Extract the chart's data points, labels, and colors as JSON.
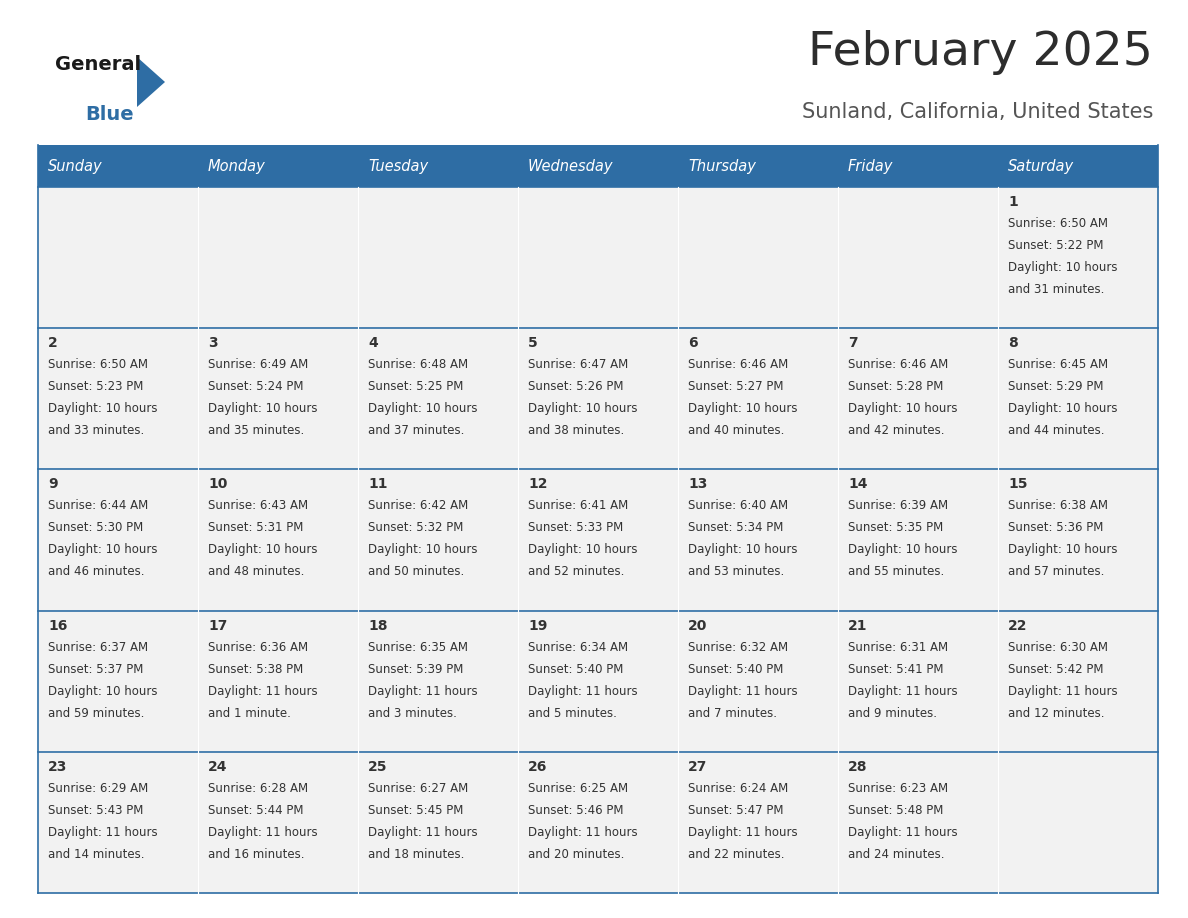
{
  "title": "February 2025",
  "subtitle": "Sunland, California, United States",
  "header_bg": "#2e6da4",
  "header_text_color": "#ffffff",
  "cell_bg": "#f2f2f2",
  "border_color": "#2e6da4",
  "title_color": "#2d2d2d",
  "subtitle_color": "#555555",
  "day_num_color": "#333333",
  "info_color": "#333333",
  "logo_black": "#1a1a1a",
  "logo_blue": "#2e6da4",
  "days_of_week": [
    "Sunday",
    "Monday",
    "Tuesday",
    "Wednesday",
    "Thursday",
    "Friday",
    "Saturday"
  ],
  "calendar": [
    [
      {
        "day": null,
        "sunrise": null,
        "sunset": null,
        "daylight_line1": null,
        "daylight_line2": null
      },
      {
        "day": null,
        "sunrise": null,
        "sunset": null,
        "daylight_line1": null,
        "daylight_line2": null
      },
      {
        "day": null,
        "sunrise": null,
        "sunset": null,
        "daylight_line1": null,
        "daylight_line2": null
      },
      {
        "day": null,
        "sunrise": null,
        "sunset": null,
        "daylight_line1": null,
        "daylight_line2": null
      },
      {
        "day": null,
        "sunrise": null,
        "sunset": null,
        "daylight_line1": null,
        "daylight_line2": null
      },
      {
        "day": null,
        "sunrise": null,
        "sunset": null,
        "daylight_line1": null,
        "daylight_line2": null
      },
      {
        "day": "1",
        "sunrise": "Sunrise: 6:50 AM",
        "sunset": "Sunset: 5:22 PM",
        "daylight_line1": "Daylight: 10 hours",
        "daylight_line2": "and 31 minutes."
      }
    ],
    [
      {
        "day": "2",
        "sunrise": "Sunrise: 6:50 AM",
        "sunset": "Sunset: 5:23 PM",
        "daylight_line1": "Daylight: 10 hours",
        "daylight_line2": "and 33 minutes."
      },
      {
        "day": "3",
        "sunrise": "Sunrise: 6:49 AM",
        "sunset": "Sunset: 5:24 PM",
        "daylight_line1": "Daylight: 10 hours",
        "daylight_line2": "and 35 minutes."
      },
      {
        "day": "4",
        "sunrise": "Sunrise: 6:48 AM",
        "sunset": "Sunset: 5:25 PM",
        "daylight_line1": "Daylight: 10 hours",
        "daylight_line2": "and 37 minutes."
      },
      {
        "day": "5",
        "sunrise": "Sunrise: 6:47 AM",
        "sunset": "Sunset: 5:26 PM",
        "daylight_line1": "Daylight: 10 hours",
        "daylight_line2": "and 38 minutes."
      },
      {
        "day": "6",
        "sunrise": "Sunrise: 6:46 AM",
        "sunset": "Sunset: 5:27 PM",
        "daylight_line1": "Daylight: 10 hours",
        "daylight_line2": "and 40 minutes."
      },
      {
        "day": "7",
        "sunrise": "Sunrise: 6:46 AM",
        "sunset": "Sunset: 5:28 PM",
        "daylight_line1": "Daylight: 10 hours",
        "daylight_line2": "and 42 minutes."
      },
      {
        "day": "8",
        "sunrise": "Sunrise: 6:45 AM",
        "sunset": "Sunset: 5:29 PM",
        "daylight_line1": "Daylight: 10 hours",
        "daylight_line2": "and 44 minutes."
      }
    ],
    [
      {
        "day": "9",
        "sunrise": "Sunrise: 6:44 AM",
        "sunset": "Sunset: 5:30 PM",
        "daylight_line1": "Daylight: 10 hours",
        "daylight_line2": "and 46 minutes."
      },
      {
        "day": "10",
        "sunrise": "Sunrise: 6:43 AM",
        "sunset": "Sunset: 5:31 PM",
        "daylight_line1": "Daylight: 10 hours",
        "daylight_line2": "and 48 minutes."
      },
      {
        "day": "11",
        "sunrise": "Sunrise: 6:42 AM",
        "sunset": "Sunset: 5:32 PM",
        "daylight_line1": "Daylight: 10 hours",
        "daylight_line2": "and 50 minutes."
      },
      {
        "day": "12",
        "sunrise": "Sunrise: 6:41 AM",
        "sunset": "Sunset: 5:33 PM",
        "daylight_line1": "Daylight: 10 hours",
        "daylight_line2": "and 52 minutes."
      },
      {
        "day": "13",
        "sunrise": "Sunrise: 6:40 AM",
        "sunset": "Sunset: 5:34 PM",
        "daylight_line1": "Daylight: 10 hours",
        "daylight_line2": "and 53 minutes."
      },
      {
        "day": "14",
        "sunrise": "Sunrise: 6:39 AM",
        "sunset": "Sunset: 5:35 PM",
        "daylight_line1": "Daylight: 10 hours",
        "daylight_line2": "and 55 minutes."
      },
      {
        "day": "15",
        "sunrise": "Sunrise: 6:38 AM",
        "sunset": "Sunset: 5:36 PM",
        "daylight_line1": "Daylight: 10 hours",
        "daylight_line2": "and 57 minutes."
      }
    ],
    [
      {
        "day": "16",
        "sunrise": "Sunrise: 6:37 AM",
        "sunset": "Sunset: 5:37 PM",
        "daylight_line1": "Daylight: 10 hours",
        "daylight_line2": "and 59 minutes."
      },
      {
        "day": "17",
        "sunrise": "Sunrise: 6:36 AM",
        "sunset": "Sunset: 5:38 PM",
        "daylight_line1": "Daylight: 11 hours",
        "daylight_line2": "and 1 minute."
      },
      {
        "day": "18",
        "sunrise": "Sunrise: 6:35 AM",
        "sunset": "Sunset: 5:39 PM",
        "daylight_line1": "Daylight: 11 hours",
        "daylight_line2": "and 3 minutes."
      },
      {
        "day": "19",
        "sunrise": "Sunrise: 6:34 AM",
        "sunset": "Sunset: 5:40 PM",
        "daylight_line1": "Daylight: 11 hours",
        "daylight_line2": "and 5 minutes."
      },
      {
        "day": "20",
        "sunrise": "Sunrise: 6:32 AM",
        "sunset": "Sunset: 5:40 PM",
        "daylight_line1": "Daylight: 11 hours",
        "daylight_line2": "and 7 minutes."
      },
      {
        "day": "21",
        "sunrise": "Sunrise: 6:31 AM",
        "sunset": "Sunset: 5:41 PM",
        "daylight_line1": "Daylight: 11 hours",
        "daylight_line2": "and 9 minutes."
      },
      {
        "day": "22",
        "sunrise": "Sunrise: 6:30 AM",
        "sunset": "Sunset: 5:42 PM",
        "daylight_line1": "Daylight: 11 hours",
        "daylight_line2": "and 12 minutes."
      }
    ],
    [
      {
        "day": "23",
        "sunrise": "Sunrise: 6:29 AM",
        "sunset": "Sunset: 5:43 PM",
        "daylight_line1": "Daylight: 11 hours",
        "daylight_line2": "and 14 minutes."
      },
      {
        "day": "24",
        "sunrise": "Sunrise: 6:28 AM",
        "sunset": "Sunset: 5:44 PM",
        "daylight_line1": "Daylight: 11 hours",
        "daylight_line2": "and 16 minutes."
      },
      {
        "day": "25",
        "sunrise": "Sunrise: 6:27 AM",
        "sunset": "Sunset: 5:45 PM",
        "daylight_line1": "Daylight: 11 hours",
        "daylight_line2": "and 18 minutes."
      },
      {
        "day": "26",
        "sunrise": "Sunrise: 6:25 AM",
        "sunset": "Sunset: 5:46 PM",
        "daylight_line1": "Daylight: 11 hours",
        "daylight_line2": "and 20 minutes."
      },
      {
        "day": "27",
        "sunrise": "Sunrise: 6:24 AM",
        "sunset": "Sunset: 5:47 PM",
        "daylight_line1": "Daylight: 11 hours",
        "daylight_line2": "and 22 minutes."
      },
      {
        "day": "28",
        "sunrise": "Sunrise: 6:23 AM",
        "sunset": "Sunset: 5:48 PM",
        "daylight_line1": "Daylight: 11 hours",
        "daylight_line2": "and 24 minutes."
      },
      {
        "day": null,
        "sunrise": null,
        "sunset": null,
        "daylight_line1": null,
        "daylight_line2": null
      }
    ]
  ],
  "fig_width": 11.88,
  "fig_height": 9.18,
  "dpi": 100
}
